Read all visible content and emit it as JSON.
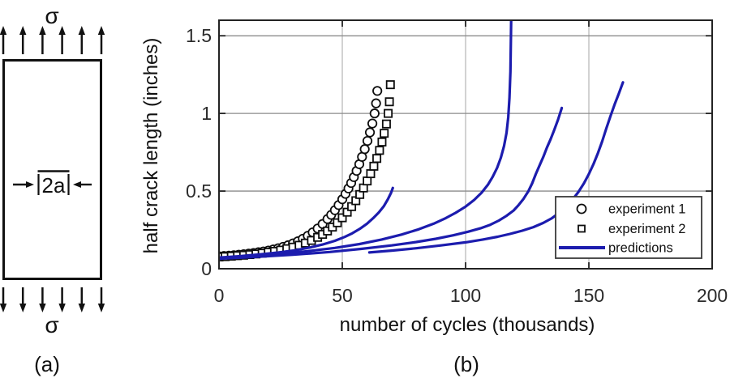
{
  "figure": {
    "panel_a_caption": "(a)",
    "panel_b_caption": "(b)",
    "diagram": {
      "sigma_top": "σ",
      "sigma_bottom": "σ",
      "crack_label": "2a"
    }
  },
  "colors": {
    "prediction_blue": "#1c1cae",
    "marker_black": "#0d0d0d",
    "frame": "#232323",
    "grid_horizontal": "#8c8c8c",
    "grid_vertical": "#b3b3b3",
    "legend_border": "#3a3a3a",
    "background": "#ffffff"
  },
  "chart_data": {
    "type": "scatter",
    "title": "",
    "xlabel": "number of cycles (thousands)",
    "ylabel": "half crack length (inches)",
    "xlim": [
      0,
      200
    ],
    "ylim": [
      0,
      1.6
    ],
    "xticks": [
      0,
      50,
      100,
      150,
      200
    ],
    "yticks": [
      0,
      0.5,
      1,
      1.5
    ],
    "grid_x": [
      50,
      100,
      150
    ],
    "grid_y": [
      0.5,
      1,
      1.5
    ],
    "legend": {
      "position": "lower right",
      "entries": [
        {
          "marker": "circle",
          "label": "experiment 1"
        },
        {
          "marker": "square",
          "label": "experiment 2"
        },
        {
          "marker": "line",
          "label": "predictions"
        }
      ]
    },
    "series": [
      {
        "name": "experiment 1",
        "type": "scatter",
        "marker": "circle",
        "points": [
          [
            0,
            0.08
          ],
          [
            2,
            0.082
          ],
          [
            4,
            0.084
          ],
          [
            6,
            0.087
          ],
          [
            8,
            0.09
          ],
          [
            10,
            0.093
          ],
          [
            12,
            0.097
          ],
          [
            14,
            0.101
          ],
          [
            16,
            0.106
          ],
          [
            18,
            0.111
          ],
          [
            20,
            0.117
          ],
          [
            22,
            0.124
          ],
          [
            24,
            0.132
          ],
          [
            26,
            0.141
          ],
          [
            28,
            0.151
          ],
          [
            30,
            0.163
          ],
          [
            32,
            0.177
          ],
          [
            34,
            0.193
          ],
          [
            36,
            0.212
          ],
          [
            38,
            0.234
          ],
          [
            40,
            0.259
          ],
          [
            42,
            0.288
          ],
          [
            44,
            0.32
          ],
          [
            45.5,
            0.347
          ],
          [
            47,
            0.377
          ],
          [
            48.5,
            0.41
          ],
          [
            50,
            0.447
          ],
          [
            51.3,
            0.482
          ],
          [
            52.5,
            0.517
          ],
          [
            53.6,
            0.552
          ],
          [
            54.7,
            0.59
          ],
          [
            55.8,
            0.63
          ],
          [
            56.9,
            0.673
          ],
          [
            58,
            0.72
          ],
          [
            59.1,
            0.77
          ],
          [
            60.2,
            0.823
          ],
          [
            61.2,
            0.878
          ],
          [
            62.2,
            0.935
          ],
          [
            63.1,
            1.0
          ],
          [
            63.7,
            1.065
          ],
          [
            64.2,
            1.145
          ]
        ]
      },
      {
        "name": "experiment 2",
        "type": "scatter",
        "marker": "square",
        "points": [
          [
            0,
            0.076
          ],
          [
            2.5,
            0.078
          ],
          [
            5,
            0.081
          ],
          [
            7.5,
            0.084
          ],
          [
            10,
            0.087
          ],
          [
            12.5,
            0.091
          ],
          [
            15,
            0.095
          ],
          [
            17.5,
            0.1
          ],
          [
            20,
            0.106
          ],
          [
            22.5,
            0.112
          ],
          [
            25,
            0.12
          ],
          [
            27.5,
            0.129
          ],
          [
            30,
            0.139
          ],
          [
            32.5,
            0.151
          ],
          [
            35,
            0.165
          ],
          [
            37.5,
            0.182
          ],
          [
            40,
            0.202
          ],
          [
            42,
            0.221
          ],
          [
            44,
            0.243
          ],
          [
            46,
            0.268
          ],
          [
            48,
            0.296
          ],
          [
            50,
            0.328
          ],
          [
            52,
            0.364
          ],
          [
            53.8,
            0.4
          ],
          [
            55.5,
            0.438
          ],
          [
            57.1,
            0.478
          ],
          [
            58.6,
            0.52
          ],
          [
            60.1,
            0.565
          ],
          [
            61.5,
            0.612
          ],
          [
            62.8,
            0.66
          ],
          [
            64,
            0.71
          ],
          [
            65.1,
            0.762
          ],
          [
            66.1,
            0.816
          ],
          [
            67,
            0.872
          ],
          [
            67.9,
            0.932
          ],
          [
            68.6,
            1.0
          ],
          [
            69.1,
            1.075
          ],
          [
            69.5,
            1.185
          ]
        ]
      },
      {
        "name": "predictions",
        "type": "line",
        "curves": [
          [
            [
              0,
              0.072
            ],
            [
              8,
              0.08
            ],
            [
              16,
              0.091
            ],
            [
              24,
              0.104
            ],
            [
              31,
              0.119
            ],
            [
              37,
              0.137
            ],
            [
              42,
              0.156
            ],
            [
              47,
              0.18
            ],
            [
              51,
              0.205
            ],
            [
              54,
              0.228
            ],
            [
              57,
              0.256
            ],
            [
              60,
              0.29
            ],
            [
              62.5,
              0.325
            ],
            [
              64.8,
              0.362
            ],
            [
              66.8,
              0.402
            ],
            [
              68.5,
              0.447
            ],
            [
              69.8,
              0.49
            ],
            [
              70.5,
              0.52
            ]
          ],
          [
            [
              0,
              0.068
            ],
            [
              12,
              0.08
            ],
            [
              24,
              0.095
            ],
            [
              36,
              0.113
            ],
            [
              47,
              0.134
            ],
            [
              57,
              0.159
            ],
            [
              66,
              0.188
            ],
            [
              74,
              0.22
            ],
            [
              81,
              0.254
            ],
            [
              87,
              0.29
            ],
            [
              92,
              0.326
            ],
            [
              96,
              0.36
            ],
            [
              100,
              0.4
            ],
            [
              103.5,
              0.443
            ],
            [
              106.5,
              0.49
            ],
            [
              109,
              0.54
            ],
            [
              111,
              0.592
            ],
            [
              112.8,
              0.65
            ],
            [
              114.3,
              0.715
            ],
            [
              115.6,
              0.79
            ],
            [
              116.6,
              0.875
            ],
            [
              117.3,
              0.975
            ],
            [
              117.8,
              1.1
            ],
            [
              118.2,
              1.27
            ],
            [
              118.5,
              1.6
            ]
          ],
          [
            [
              0,
              0.064
            ],
            [
              15,
              0.076
            ],
            [
              30,
              0.09
            ],
            [
              45,
              0.108
            ],
            [
              58,
              0.128
            ],
            [
              70,
              0.15
            ],
            [
              80,
              0.172
            ],
            [
              88,
              0.193
            ],
            [
              95,
              0.215
            ],
            [
              101,
              0.238
            ],
            [
              106,
              0.26
            ],
            [
              110,
              0.283
            ],
            [
              113.5,
              0.31
            ],
            [
              116.5,
              0.34
            ],
            [
              119.5,
              0.375
            ],
            [
              121.5,
              0.41
            ],
            [
              123.5,
              0.45
            ],
            [
              125.5,
              0.5
            ],
            [
              127,
              0.55
            ],
            [
              128.5,
              0.61
            ],
            [
              130,
              0.665
            ],
            [
              131.5,
              0.72
            ],
            [
              133,
              0.78
            ],
            [
              134.5,
              0.835
            ],
            [
              136,
              0.895
            ],
            [
              137.5,
              0.96
            ],
            [
              139,
              1.035
            ]
          ],
          [
            [
              61,
              0.105
            ],
            [
              70,
              0.117
            ],
            [
              80,
              0.132
            ],
            [
              90,
              0.15
            ],
            [
              100,
              0.17
            ],
            [
              107,
              0.188
            ],
            [
              113,
              0.206
            ],
            [
              118,
              0.224
            ],
            [
              123,
              0.245
            ],
            [
              127.5,
              0.268
            ],
            [
              131.5,
              0.295
            ],
            [
              135,
              0.325
            ],
            [
              138,
              0.36
            ],
            [
              140.8,
              0.4
            ],
            [
              143.4,
              0.445
            ],
            [
              145.8,
              0.495
            ],
            [
              148,
              0.55
            ],
            [
              150,
              0.61
            ],
            [
              151.9,
              0.675
            ],
            [
              153.7,
              0.745
            ],
            [
              155.4,
              0.82
            ],
            [
              157,
              0.9
            ],
            [
              158.8,
              0.985
            ],
            [
              160.5,
              1.06
            ],
            [
              162.2,
              1.13
            ],
            [
              163.8,
              1.2
            ]
          ]
        ]
      }
    ]
  }
}
